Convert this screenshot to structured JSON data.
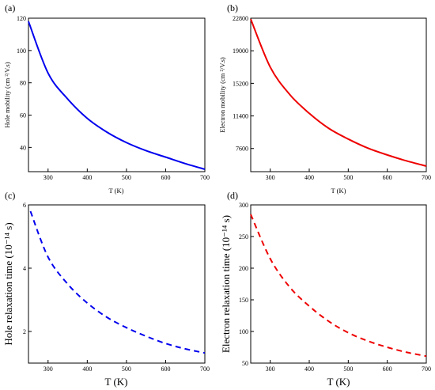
{
  "chart_data": [
    {
      "panel_label": "(a)",
      "type": "line",
      "style": "solid",
      "color": "#0000ee",
      "xlabel": "T (K)",
      "ylabel": "Hole mobility (cm ²/V.s)",
      "xlim": [
        250,
        700
      ],
      "ylim": [
        25,
        120
      ],
      "xticks": [
        300,
        400,
        500,
        600,
        700
      ],
      "yticks": [
        40,
        60,
        80,
        100,
        120
      ],
      "ytick_labels": [
        "40",
        "60",
        "80",
        "100",
        "120"
      ],
      "x": [
        250,
        300,
        350,
        400,
        450,
        500,
        550,
        600,
        650,
        700
      ],
      "y": [
        118,
        86,
        70,
        58,
        49.5,
        43,
        38,
        34,
        30,
        26.5
      ]
    },
    {
      "panel_label": "(b)",
      "type": "line",
      "style": "solid",
      "color": "#ee0000",
      "xlabel": "T (K)",
      "ylabel": "Electron mobility (cm ²/V.s)",
      "xlim": [
        250,
        700
      ],
      "ylim": [
        4900,
        22800
      ],
      "xticks": [
        300,
        400,
        500,
        600,
        700
      ],
      "yticks": [
        7600,
        11400,
        15200,
        19000,
        22800
      ],
      "ytick_labels": [
        "7600",
        "11400",
        "15200",
        "19000",
        "22800"
      ],
      "x": [
        250,
        300,
        350,
        400,
        450,
        500,
        550,
        600,
        650,
        700
      ],
      "y": [
        22700,
        17100,
        13900,
        11700,
        9950,
        8700,
        7650,
        6850,
        6150,
        5550
      ]
    },
    {
      "panel_label": "(c)",
      "type": "line",
      "style": "dashed",
      "color": "#0000ee",
      "xlabel": "T (K)",
      "ylabel": "Hole relaxation time (10⁻¹⁴ s)",
      "xlim": [
        250,
        700
      ],
      "ylim": [
        1,
        6
      ],
      "xticks": [
        300,
        400,
        500,
        600,
        700
      ],
      "yticks": [
        2,
        4,
        6
      ],
      "ytick_labels": [
        "2",
        "4",
        "6"
      ],
      "x": [
        255,
        300,
        350,
        400,
        450,
        500,
        550,
        600,
        650,
        700
      ],
      "y": [
        5.8,
        4.35,
        3.5,
        2.9,
        2.45,
        2.12,
        1.85,
        1.62,
        1.45,
        1.32
      ]
    },
    {
      "panel_label": "(d)",
      "type": "line",
      "style": "dashed",
      "color": "#ee0000",
      "xlabel": "T (K)",
      "ylabel": "Electron relaxation time (10⁻¹⁴ s)",
      "xlim": [
        250,
        700
      ],
      "ylim": [
        50,
        300
      ],
      "xticks": [
        300,
        400,
        500,
        600,
        700
      ],
      "yticks": [
        50,
        100,
        150,
        200,
        250,
        300
      ],
      "ytick_labels": [
        "50",
        "100",
        "150",
        "200",
        "250",
        "300"
      ],
      "x": [
        250,
        300,
        350,
        400,
        450,
        500,
        550,
        600,
        650,
        700
      ],
      "y": [
        285,
        215,
        170,
        140,
        116,
        98,
        85,
        75,
        67,
        61
      ]
    }
  ]
}
